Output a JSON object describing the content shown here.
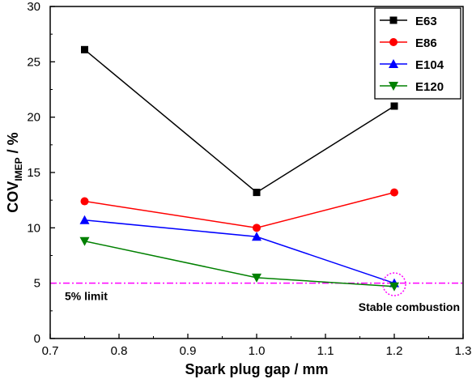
{
  "chart_data": {
    "type": "line",
    "title": "",
    "xlabel": "Spark plug gap / mm",
    "ylabel": {
      "main": "COV",
      "sub": "IMEP",
      "suffix": " / %"
    },
    "xlim": [
      0.7,
      1.3
    ],
    "ylim": [
      0,
      30
    ],
    "xticks": [
      0.7,
      0.8,
      0.9,
      1.0,
      1.1,
      1.2,
      1.3
    ],
    "xtick_labels": [
      "0.7",
      "0.8",
      "0.9",
      "1.0",
      "1.1",
      "1.2",
      "1.3"
    ],
    "yticks": [
      0,
      5,
      10,
      15,
      20,
      25,
      30
    ],
    "ytick_labels": [
      "0",
      "5",
      "10",
      "15",
      "20",
      "25",
      "30"
    ],
    "grid": false,
    "legend_position": "top-right",
    "x": [
      0.75,
      1.0,
      1.2
    ],
    "series": [
      {
        "name": "E63",
        "values": [
          26.1,
          13.2,
          21.0
        ],
        "color": "#000000",
        "marker": "square"
      },
      {
        "name": "E86",
        "values": [
          12.4,
          10.0,
          13.2
        ],
        "color": "#ff0000",
        "marker": "circle"
      },
      {
        "name": "E104",
        "values": [
          10.7,
          9.2,
          5.0
        ],
        "color": "#0000ff",
        "marker": "triangle-up"
      },
      {
        "name": "E120",
        "values": [
          8.8,
          5.5,
          4.7
        ],
        "color": "#008000",
        "marker": "triangle-down"
      }
    ],
    "reference_line": {
      "y": 5,
      "label": "5% limit",
      "color": "#ff00ff",
      "style": "dash-dot"
    },
    "annotation": {
      "label": "Stable combustion",
      "x": 1.2,
      "y": 4.9,
      "color": "#ff00ff",
      "style": "dotted-circle"
    }
  }
}
